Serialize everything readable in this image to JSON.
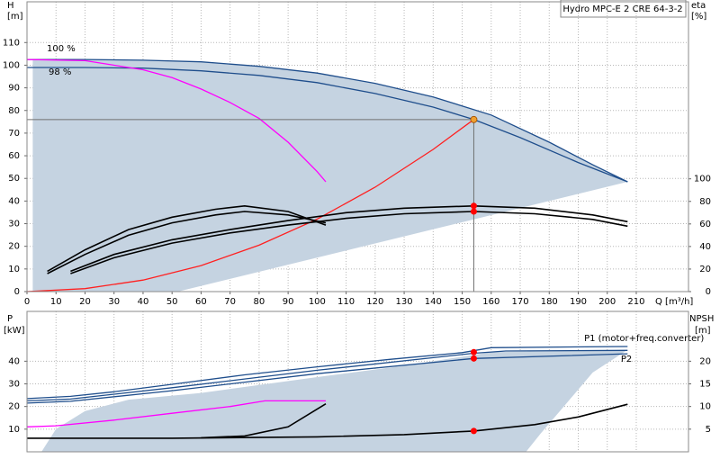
{
  "chart_data": [
    {
      "type": "line",
      "title": "Hydro MPC-E 2 CRE 64-3-2",
      "ylabel": "H",
      "yunit": "[m]",
      "y2label": "eta",
      "y2unit": "[%]",
      "xlabel": "Q [m³/h]",
      "xlim": [
        0,
        228
      ],
      "xticks": [
        0,
        10,
        20,
        30,
        40,
        50,
        60,
        70,
        80,
        90,
        100,
        110,
        120,
        130,
        140,
        150,
        160,
        170,
        180,
        190,
        200,
        210
      ],
      "ylim": [
        0,
        128
      ],
      "yticks": [
        0,
        10,
        20,
        30,
        40,
        50,
        60,
        70,
        80,
        90,
        100,
        110
      ],
      "y2lim": [
        0,
        257
      ],
      "y2ticks": [
        0,
        20,
        40,
        60,
        80,
        100
      ],
      "grid": true,
      "series": [
        {
          "style": "area",
          "color": "#c5d3e1",
          "x": [
            2,
            2,
            20,
            40,
            60,
            80,
            100,
            120,
            140,
            160,
            180,
            195,
            207,
            52
          ],
          "values": [
            0,
            102.5,
            102.5,
            102.2,
            101.5,
            99.5,
            96.5,
            92,
            86,
            78,
            66,
            56,
            48.5,
            0
          ]
        },
        {
          "name": "100 %",
          "color": "#1f4e8c",
          "x": [
            0,
            20,
            40,
            60,
            80,
            100,
            120,
            140,
            160,
            180,
            195,
            207
          ],
          "values": [
            102.5,
            102.5,
            102.2,
            101.5,
            99.5,
            96.5,
            92,
            86,
            78,
            66,
            56,
            48.5
          ]
        },
        {
          "name": "98 %",
          "color": "#1f4e8c",
          "x": [
            0,
            20,
            40,
            60,
            80,
            100,
            120,
            140,
            154,
            170,
            190,
            207
          ],
          "values": [
            99,
            99,
            98.7,
            97.5,
            95.5,
            92.3,
            87.5,
            81.5,
            76,
            68,
            57,
            48.5
          ]
        },
        {
          "color": "#ff00ff",
          "x": [
            0,
            20,
            40,
            50,
            60,
            70,
            80,
            90,
            100,
            103
          ],
          "values": [
            102.5,
            102,
            98,
            94.5,
            89.5,
            83.5,
            76.5,
            66,
            53,
            48.5
          ]
        },
        {
          "color": "#ff2020",
          "x": [
            0,
            20,
            40,
            60,
            80,
            100,
            120,
            140,
            154
          ],
          "values": [
            0,
            1.3,
            5.1,
            11.5,
            20.5,
            32,
            46.1,
            62.8,
            76
          ]
        },
        {
          "axis": "y2",
          "color": "#000000",
          "x": [
            15,
            30,
            50,
            70,
            90,
            110,
            130,
            154,
            175,
            195,
            207
          ],
          "values": [
            18,
            33,
            46,
            55,
            63,
            70,
            74,
            76,
            74,
            68,
            62
          ]
        },
        {
          "axis": "y2",
          "color": "#000000",
          "x": [
            15,
            30,
            50,
            70,
            90,
            110,
            130,
            154,
            175,
            195,
            207
          ],
          "values": [
            16,
            30,
            43,
            52,
            59,
            65,
            69,
            71,
            69,
            64,
            58
          ]
        },
        {
          "axis": "y2",
          "color": "#000000",
          "x": [
            7,
            20,
            35,
            50,
            65,
            75,
            90,
            103
          ],
          "values": [
            18,
            37,
            55,
            66,
            73,
            76,
            71,
            59
          ]
        },
        {
          "axis": "y2",
          "color": "#000000",
          "x": [
            7,
            20,
            35,
            50,
            65,
            75,
            90,
            103
          ],
          "values": [
            16,
            33,
            50,
            61,
            68,
            71,
            68,
            61
          ]
        }
      ],
      "points": [
        {
          "x": 154,
          "value": 76,
          "color": "#f0a030",
          "guides": true
        },
        {
          "x": 154,
          "value": 76,
          "axis": "y2",
          "color": "#ff0000"
        },
        {
          "x": 154,
          "value": 71,
          "axis": "y2",
          "color": "#ff0000"
        }
      ]
    },
    {
      "type": "line",
      "ylabel": "P",
      "yunit": "[kW]",
      "y2label": "NPSH",
      "y2unit": "[m]",
      "ylim": [
        0,
        62
      ],
      "yticks": [
        10,
        20,
        30,
        40
      ],
      "y2lim": [
        0,
        31
      ],
      "y2ticks": [
        5,
        10,
        15,
        20
      ],
      "grid": true,
      "series": [
        {
          "style": "area",
          "color": "#c5d3e1",
          "x": [
            5,
            10,
            20,
            35,
            60,
            100,
            130,
            160,
            207,
            195,
            185,
            177,
            172
          ],
          "values": [
            0,
            10,
            18,
            23,
            26,
            33,
            38,
            44,
            45,
            35,
            20,
            8,
            0
          ]
        },
        {
          "name": "P1 (motor+freq.converter)",
          "color": "#1f4e8c",
          "x": [
            0,
            15,
            30,
            50,
            75,
            100,
            125,
            150,
            160,
            207
          ],
          "values": [
            23.5,
            24.5,
            26.5,
            29.8,
            34,
            37.5,
            40.8,
            43.8,
            46,
            46.5
          ]
        },
        {
          "name": "P2",
          "color": "#1f4e8c",
          "x": [
            0,
            15,
            50,
            100,
            154,
            207
          ],
          "values": [
            21.5,
            22.3,
            27,
            34.5,
            41.2,
            43.3
          ]
        },
        {
          "color": "#1f4e8c",
          "x": [
            0,
            15,
            50,
            100,
            154,
            165,
            207
          ],
          "values": [
            22.5,
            23.3,
            28.3,
            36,
            43.5,
            44.5,
            44.8
          ]
        },
        {
          "color": "#ff00ff",
          "x": [
            0,
            10,
            30,
            50,
            70,
            82,
            103
          ],
          "values": [
            11,
            11.5,
            14,
            17,
            20,
            22.5,
            22.5
          ]
        },
        {
          "axis": "y2",
          "color": "#000000",
          "x": [
            0,
            50,
            100,
            130,
            154,
            175,
            190,
            207
          ],
          "values": [
            3,
            3,
            3.3,
            3.8,
            4.6,
            6,
            7.7,
            10.5
          ]
        },
        {
          "axis": "y2",
          "color": "#000000",
          "x": [
            60,
            75,
            90,
            103
          ],
          "values": [
            3.1,
            3.5,
            5.5,
            10.6
          ]
        }
      ],
      "points": [
        {
          "x": 154,
          "value": 44,
          "color": "#ff0000"
        },
        {
          "x": 154,
          "value": 41.2,
          "color": "#ff0000"
        },
        {
          "x": 154,
          "value": 4.6,
          "axis": "y2",
          "color": "#ff0000"
        }
      ]
    }
  ]
}
